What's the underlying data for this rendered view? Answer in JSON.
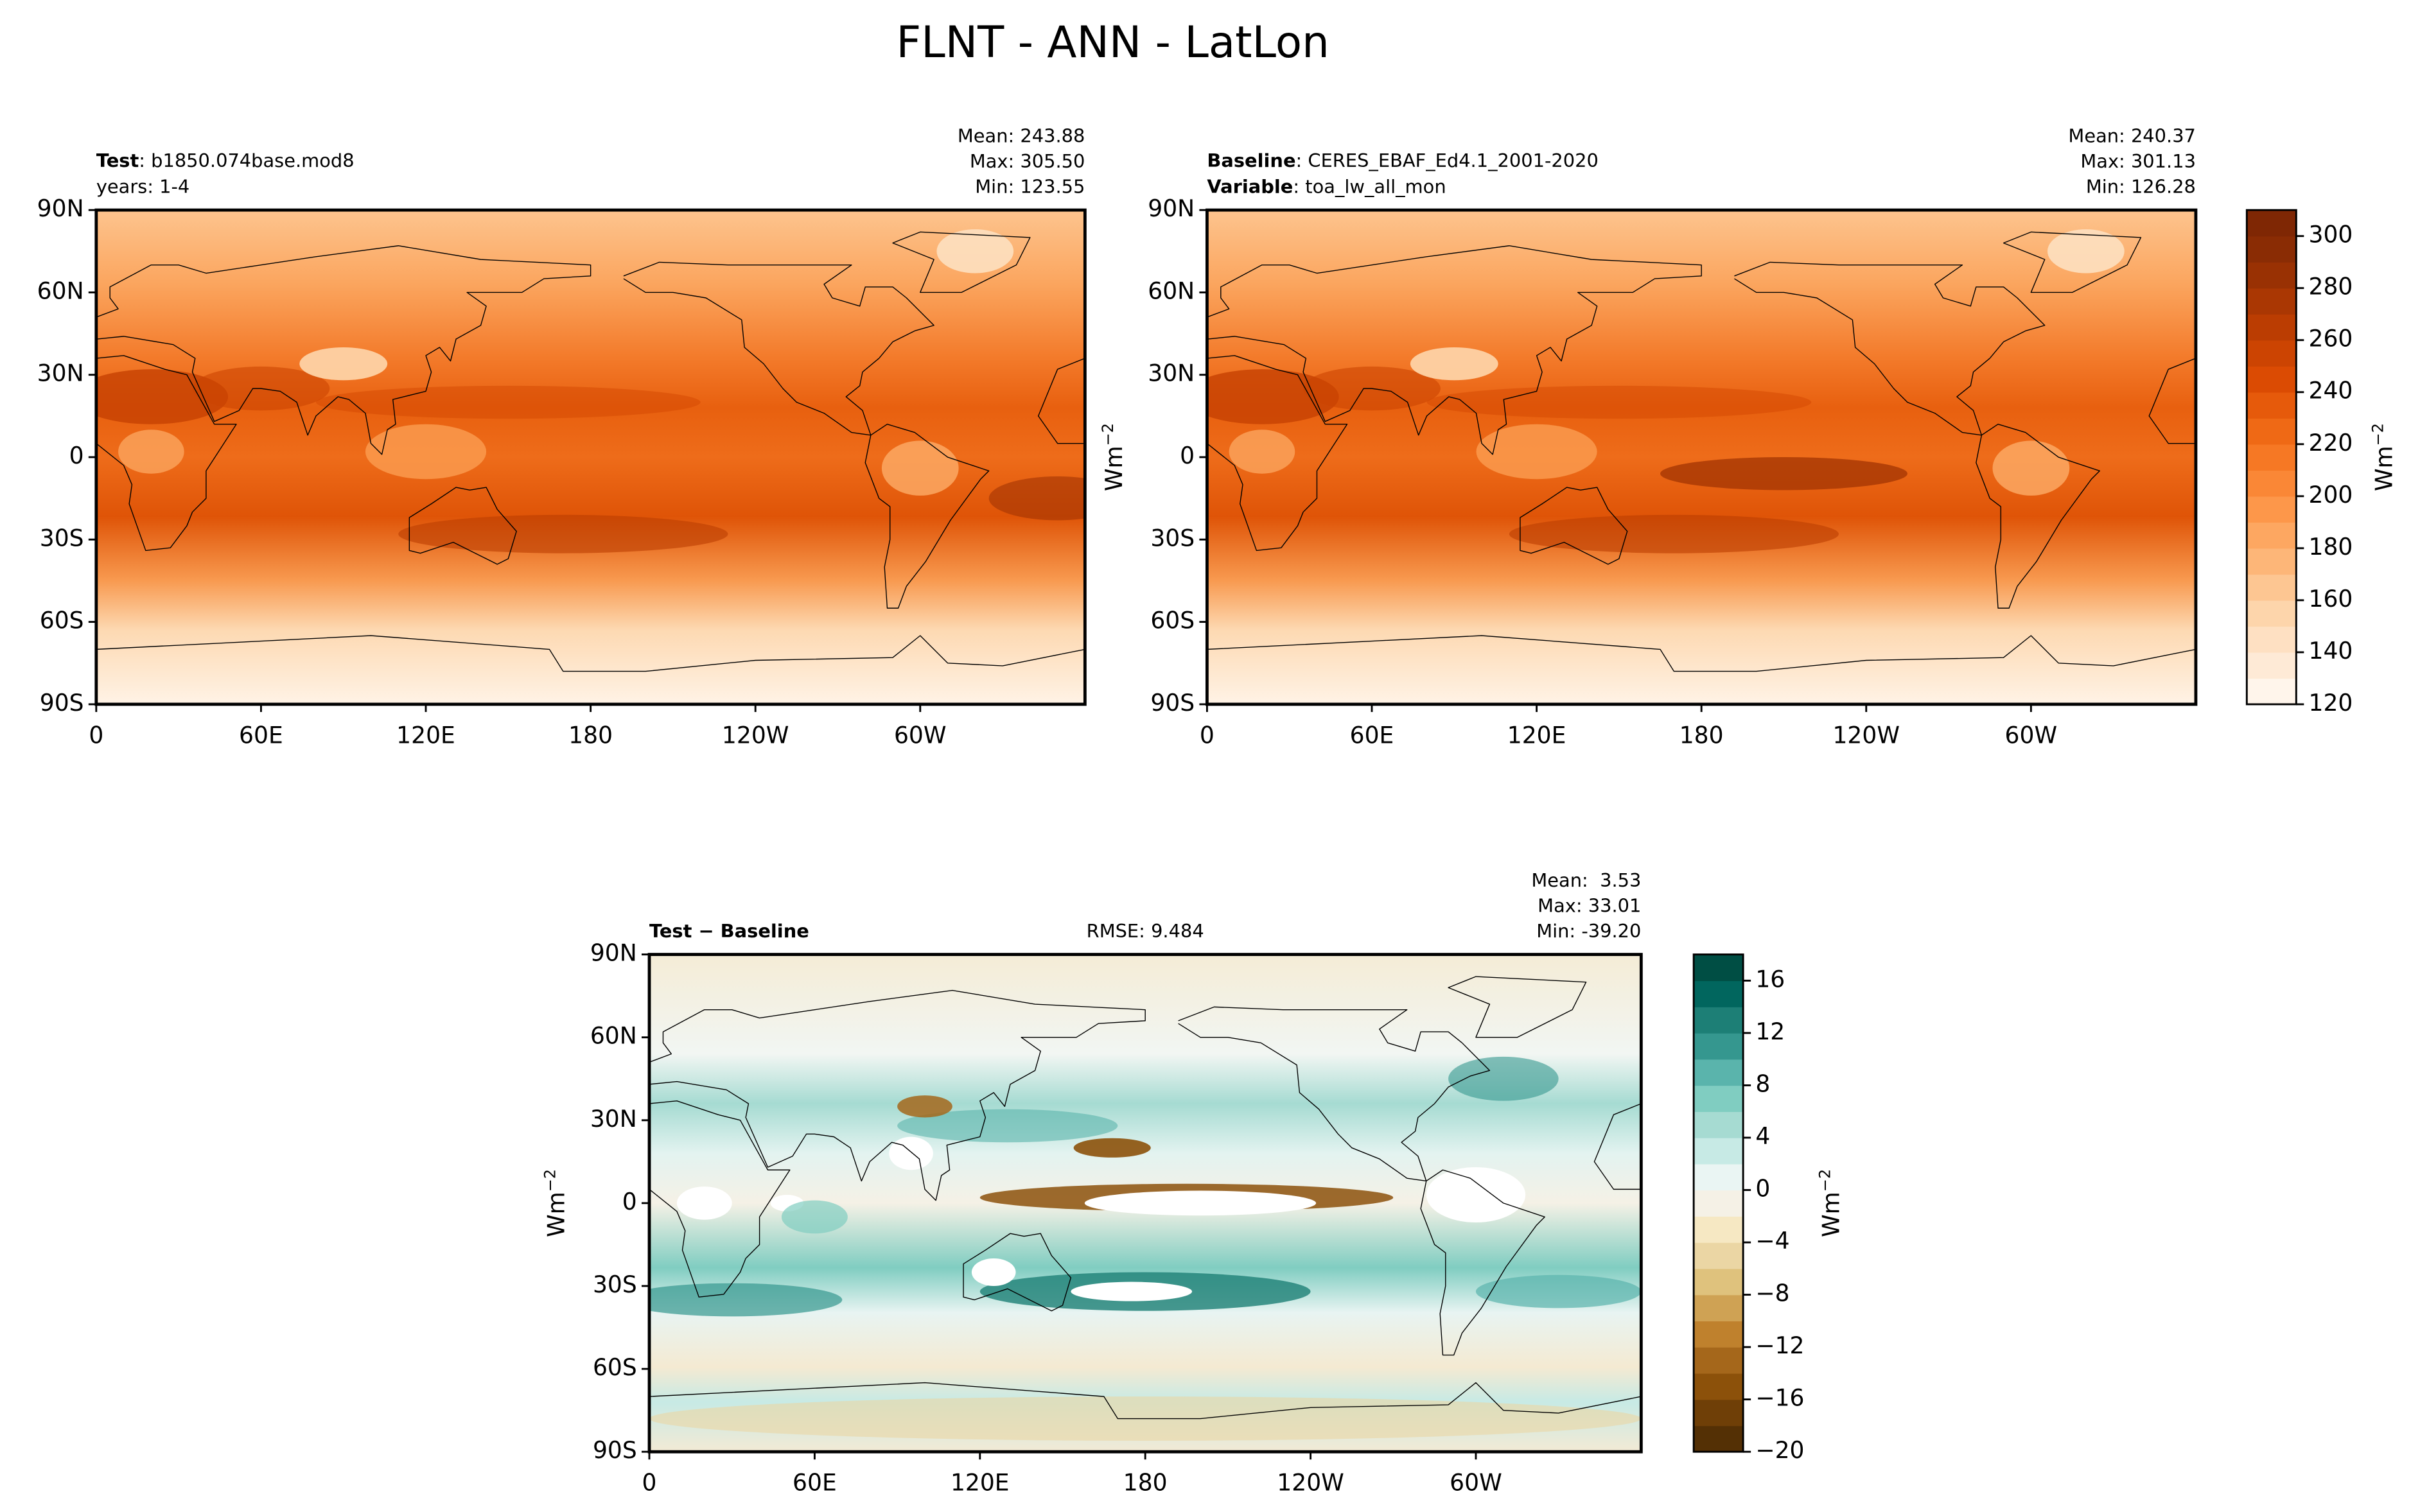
{
  "title": "FLNT - ANN - LatLon",
  "chart_data": [
    {
      "type": "map",
      "title_bold": "Test",
      "title": ": b1850.074base.mod8",
      "subtitle": "years: 1-4",
      "stats": [
        "Mean: 243.88",
        "Max: 305.50",
        "Min: 123.55"
      ],
      "xlim": [
        0,
        360
      ],
      "ylim": [
        -90,
        90
      ],
      "xticks": [
        0,
        {
          "value": 60,
          "label": "60E"
        },
        {
          "value": 120,
          "label": "120E"
        },
        180,
        {
          "value": 240,
          "label": "120W"
        },
        {
          "value": 300,
          "label": "60W"
        }
      ],
      "yticks": [
        {
          "value": -90,
          "label": "90S"
        },
        {
          "value": -60,
          "label": "60S"
        },
        {
          "value": -30,
          "label": "30S"
        },
        0,
        {
          "value": 30,
          "label": "30N"
        },
        {
          "value": 60,
          "label": "60N"
        },
        {
          "value": 90,
          "label": "90N"
        }
      ]
    },
    {
      "type": "map",
      "title_bold": "Baseline",
      "title": ": CERES_EBAF_Ed4.1_2001-2020",
      "subtitle_bold": "Variable",
      "subtitle": ": toa_lw_all_mon",
      "stats": [
        "Mean: 240.37",
        "Max: 301.13",
        "Min: 126.28"
      ],
      "ylabel": "Wm",
      "ylabel_sup": "−2",
      "xlim": [
        0,
        360
      ],
      "ylim": [
        -90,
        90
      ],
      "xticks": [
        0,
        {
          "value": 60,
          "label": "60E"
        },
        {
          "value": 120,
          "label": "120E"
        },
        180,
        {
          "value": 240,
          "label": "120W"
        },
        {
          "value": 300,
          "label": "60W"
        }
      ],
      "yticks": [
        {
          "value": -90,
          "label": "90S"
        },
        {
          "value": -60,
          "label": "60S"
        },
        {
          "value": -30,
          "label": "30S"
        },
        0,
        {
          "value": 30,
          "label": "30N"
        },
        {
          "value": 60,
          "label": "60N"
        },
        {
          "value": 90,
          "label": "90N"
        }
      ],
      "colorbar": {
        "label": "Wm",
        "label_sup": "−2",
        "lim": [
          120,
          310
        ],
        "ticks": [
          120,
          140,
          160,
          180,
          200,
          220,
          240,
          260,
          280,
          300
        ],
        "levels": [
          120,
          130,
          140,
          150,
          160,
          170,
          180,
          190,
          200,
          210,
          220,
          230,
          240,
          250,
          260,
          270,
          280,
          290,
          300,
          310
        ],
        "colors": [
          "#fff5eb",
          "#feead6",
          "#fee0c2",
          "#fdd5ab",
          "#fdc692",
          "#fdb678",
          "#fda761",
          "#fd974a",
          "#fa8736",
          "#f67824",
          "#ef6915",
          "#e65a0b",
          "#db4b03",
          "#cc4402",
          "#bb3d02",
          "#aa3703",
          "#993103",
          "#8a2c04",
          "#7f2704"
        ]
      }
    },
    {
      "type": "map",
      "title_bold": "Test − Baseline",
      "annotation": "RMSE: 9.484",
      "stats": [
        "Mean:  3.53",
        "Max: 33.01",
        "Min: -39.20"
      ],
      "ylabel": "Wm",
      "ylabel_sup": "−2",
      "xlim": [
        0,
        360
      ],
      "ylim": [
        -90,
        90
      ],
      "xticks": [
        0,
        {
          "value": 60,
          "label": "60E"
        },
        {
          "value": 120,
          "label": "120E"
        },
        180,
        {
          "value": 240,
          "label": "120W"
        },
        {
          "value": 300,
          "label": "60W"
        }
      ],
      "yticks": [
        {
          "value": -90,
          "label": "90S"
        },
        {
          "value": -60,
          "label": "60S"
        },
        {
          "value": -30,
          "label": "30S"
        },
        0,
        {
          "value": 30,
          "label": "30N"
        },
        {
          "value": 60,
          "label": "60N"
        },
        {
          "value": 90,
          "label": "90N"
        }
      ],
      "colorbar": {
        "label": "Wm",
        "label_sup": "−2",
        "lim": [
          -20,
          18
        ],
        "ticks": [
          {
            "value": -20,
            "label": "−20"
          },
          {
            "value": -16,
            "label": "−16"
          },
          {
            "value": -12,
            "label": "−12"
          },
          {
            "value": -8,
            "label": "−8"
          },
          {
            "value": -4,
            "label": "−4"
          },
          0,
          4,
          8,
          12,
          16
        ],
        "levels": [
          -20,
          -18,
          -16,
          -14,
          -12,
          -10,
          -8,
          -6,
          -4,
          -2,
          0,
          2,
          4,
          6,
          8,
          10,
          12,
          14,
          16,
          18
        ],
        "colors": [
          "#543005",
          "#6f3f07",
          "#8c510a",
          "#a5671b",
          "#bf812d",
          "#cfa254",
          "#dfc27d",
          "#ebd6a4",
          "#f6e8c3",
          "#f5f1e6",
          "#eaf5f3",
          "#c7eae5",
          "#a6dbd2",
          "#80cdc1",
          "#5ab4ac",
          "#35978f",
          "#1d7f76",
          "#01665e",
          "#004e44"
        ]
      }
    }
  ]
}
